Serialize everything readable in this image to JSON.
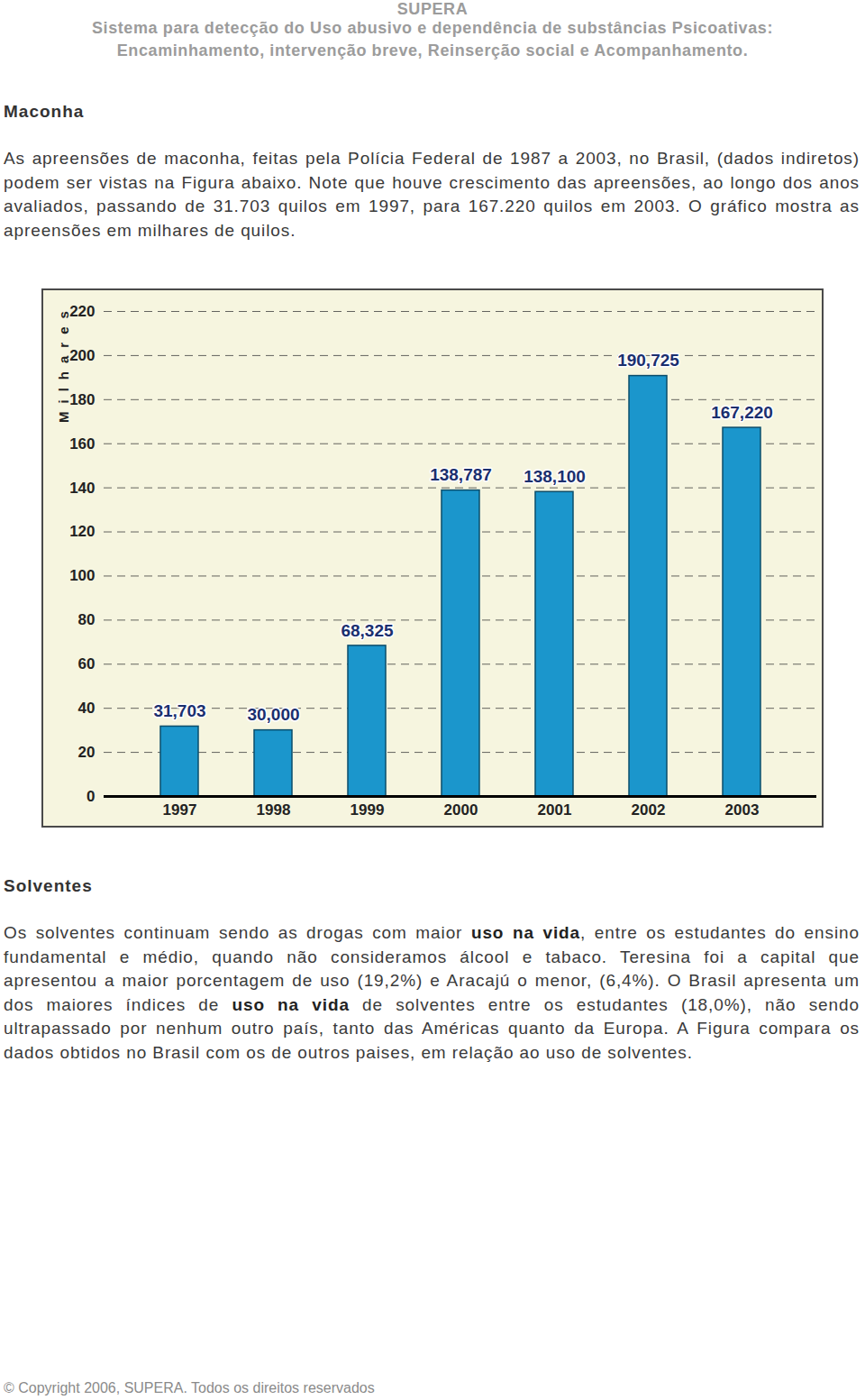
{
  "header": {
    "title": "SUPERA",
    "subtitle": [
      "Sistema para detecção do Uso abusivo e dependência de substâncias Psicoativas:",
      "Encaminhamento, intervenção breve, Reinserção social e Acompanhamento."
    ]
  },
  "sections": [
    {
      "heading": "Maconha",
      "paragraphs": [
        [
          {
            "text": "As apreensões de maconha, feitas pela Polícia Federal de 1987 a 2003, no Brasil, (dados indiretos) podem ser vistas na Figura abaixo. Note que houve crescimento das apreensões, ao longo dos anos avaliados, passando de 31.703 quilos em 1997, para 167.220 quilos em 2003. O gráfico mostra as apreensões em milhares de quilos.",
            "bold": false
          }
        ]
      ]
    },
    {
      "heading": "Solventes",
      "paragraphs": [
        [
          {
            "text": "Os solventes continuam sendo as drogas com maior ",
            "bold": false
          },
          {
            "text": "uso na vida",
            "bold": true
          },
          {
            "text": ", entre os estudantes do ensino fundamental e médio, quando não consideramos álcool e tabaco. Teresina foi a capital que apresentou a maior porcentagem de uso (19,2%) e Aracajú o menor, (6,4%). O Brasil apresenta um dos maiores índices de ",
            "bold": false
          },
          {
            "text": "uso na vida",
            "bold": true
          },
          {
            "text": " de solventes entre os estudantes (18,0%), não sendo ultrapassado por nenhum outro país, tanto das Américas quanto da Europa. A Figura compara os dados obtidos no Brasil com os de outros paises, em relação ao uso de solventes.",
            "bold": false
          }
        ]
      ]
    }
  ],
  "chart_data": {
    "type": "bar",
    "y_label": "Milhares",
    "categories": [
      "1997",
      "1998",
      "1999",
      "2000",
      "2001",
      "2002",
      "2003"
    ],
    "values": [
      31.703,
      30.0,
      68.325,
      138.787,
      138.1,
      190.725,
      167.22
    ],
    "value_labels": [
      "31,703",
      "30,000",
      "68,325",
      "138,787",
      "138,100",
      "190,725",
      "167,220"
    ],
    "color": "#1b96cc",
    "data_labels": true,
    "grid": true,
    "ylim": [
      0,
      220
    ],
    "yticks": [
      0,
      20,
      40,
      60,
      80,
      100,
      120,
      140,
      160,
      180,
      200,
      220
    ]
  },
  "footer": "© Copyright 2006, SUPERA. Todos os direitos reservados"
}
